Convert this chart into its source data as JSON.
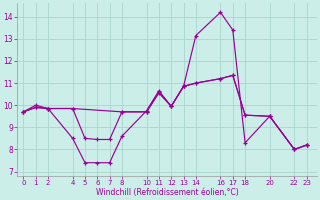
{
  "xlabel": "Windchill (Refroidissement éolien,°C)",
  "bg_color": "#cceee8",
  "grid_color": "#aad4ce",
  "line_color": "#990099",
  "ylim": [
    6.8,
    14.6
  ],
  "xlim": [
    -0.5,
    23.8
  ],
  "yticks": [
    7,
    8,
    9,
    10,
    11,
    12,
    13,
    14
  ],
  "xticks": [
    0,
    1,
    2,
    4,
    5,
    6,
    7,
    8,
    10,
    11,
    12,
    13,
    14,
    16,
    17,
    18,
    20,
    22,
    23
  ],
  "line1_x": [
    0,
    1,
    2,
    4,
    5,
    6,
    7,
    8,
    10,
    11,
    12,
    13,
    14,
    16,
    17,
    18,
    20,
    22,
    23
  ],
  "line1_y": [
    9.7,
    10.0,
    9.85,
    8.5,
    7.4,
    7.4,
    7.4,
    8.6,
    9.75,
    10.65,
    9.95,
    10.85,
    13.15,
    14.2,
    13.4,
    8.3,
    9.5,
    8.0,
    8.2
  ],
  "line2_x": [
    0,
    1,
    2,
    4,
    5,
    6,
    7,
    8,
    10,
    11,
    12,
    13,
    14,
    16,
    17,
    18,
    20,
    22,
    23
  ],
  "line2_y": [
    9.7,
    9.9,
    9.85,
    9.85,
    8.5,
    8.45,
    8.45,
    9.7,
    9.7,
    10.6,
    9.95,
    10.85,
    11.0,
    11.2,
    11.35,
    9.55,
    9.5,
    8.0,
    8.2
  ],
  "line3_x": [
    0,
    1,
    2,
    4,
    8,
    10,
    11,
    12,
    13,
    14,
    16,
    17,
    18,
    20,
    22,
    23
  ],
  "line3_y": [
    9.7,
    9.9,
    9.85,
    9.85,
    9.7,
    9.7,
    10.55,
    9.95,
    10.85,
    11.0,
    11.2,
    11.35,
    9.55,
    9.5,
    8.0,
    8.2
  ]
}
